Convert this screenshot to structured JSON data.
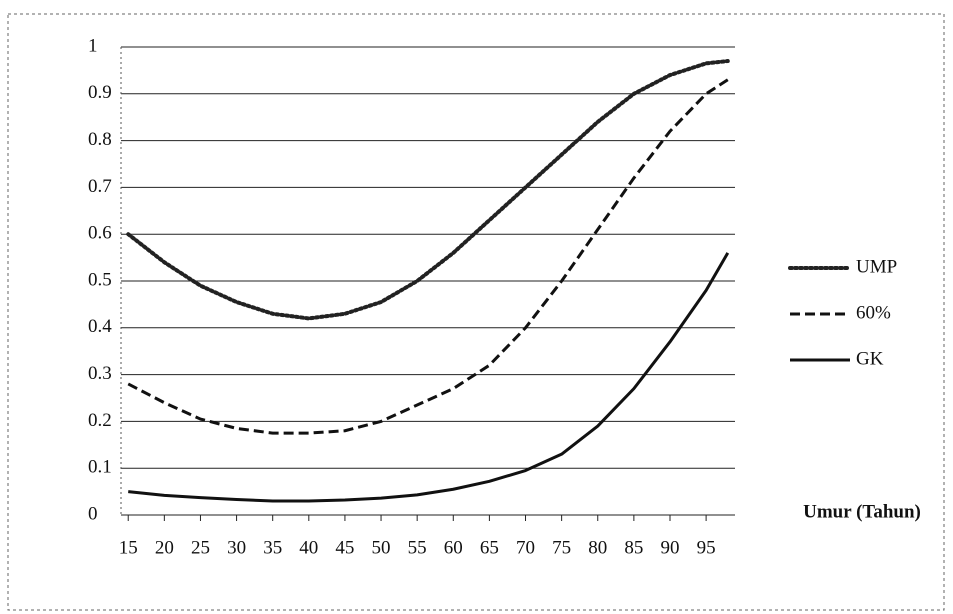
{
  "chart_data": {
    "type": "line",
    "x_label": "Umur (Tahun)",
    "x": [
      15,
      20,
      25,
      30,
      35,
      40,
      45,
      50,
      55,
      60,
      65,
      70,
      75,
      80,
      85,
      90,
      95,
      98
    ],
    "series": [
      {
        "name": "UMP",
        "color": "#222222",
        "style": "dotted",
        "values": [
          0.6,
          0.54,
          0.49,
          0.455,
          0.43,
          0.42,
          0.43,
          0.455,
          0.5,
          0.56,
          0.63,
          0.7,
          0.77,
          0.84,
          0.9,
          0.94,
          0.965,
          0.97
        ]
      },
      {
        "name": "60%",
        "color": "#111111",
        "style": "dashed",
        "values": [
          0.28,
          0.24,
          0.205,
          0.185,
          0.175,
          0.175,
          0.18,
          0.2,
          0.235,
          0.27,
          0.32,
          0.4,
          0.5,
          0.61,
          0.72,
          0.82,
          0.9,
          0.93
        ]
      },
      {
        "name": "GK",
        "color": "#111111",
        "style": "solid",
        "values": [
          0.05,
          0.042,
          0.037,
          0.033,
          0.03,
          0.03,
          0.032,
          0.036,
          0.043,
          0.055,
          0.072,
          0.095,
          0.13,
          0.19,
          0.27,
          0.37,
          0.48,
          0.56
        ]
      }
    ],
    "xlim": [
      14,
      99
    ],
    "xticks": [
      15,
      20,
      25,
      30,
      35,
      40,
      45,
      50,
      55,
      60,
      65,
      70,
      75,
      80,
      85,
      90,
      95
    ],
    "ylim": [
      0,
      1
    ],
    "yticks": [
      0,
      0.1,
      0.2,
      0.3,
      0.4,
      0.5,
      0.6,
      0.7,
      0.8,
      0.9,
      1
    ],
    "grid": true,
    "legend": "right"
  }
}
